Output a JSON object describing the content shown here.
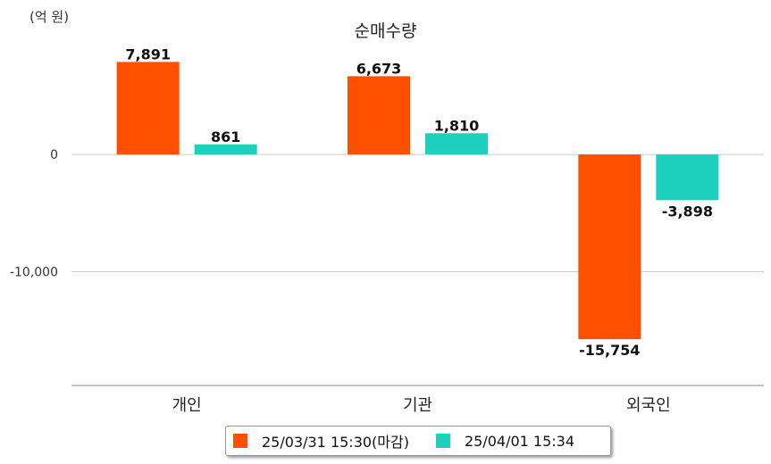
{
  "unit_label": "(억 원)",
  "colors": {
    "series_0": "#ff5000",
    "series_1": "#1dcfbd",
    "grid": "#cccccc",
    "axis": "#888888"
  },
  "chart_data": {
    "type": "bar",
    "title": "순매수량",
    "categories": [
      "개인",
      "기관",
      "외국인"
    ],
    "series": [
      {
        "name": "25/03/31 15:30(마감)",
        "values": [
          7891,
          6673,
          -15754
        ],
        "labels": [
          "7,891",
          "6,673",
          "-15,754"
        ]
      },
      {
        "name": "25/04/01 15:34",
        "values": [
          861,
          1810,
          -3898
        ],
        "labels": [
          "861",
          "1,810",
          "-3,898"
        ]
      }
    ],
    "yticks": [
      0,
      -10000
    ],
    "ytick_labels": [
      "0",
      "-10,000"
    ],
    "ylim": [
      -19700,
      9900
    ],
    "legend_position": "bottom",
    "grid": true
  }
}
